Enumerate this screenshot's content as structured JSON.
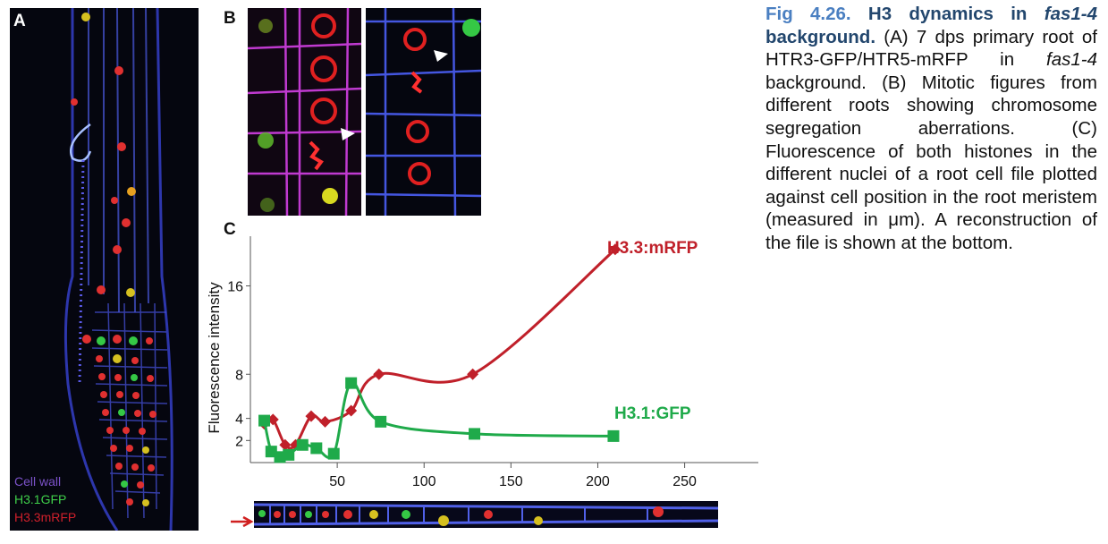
{
  "figure_number": "Fig 4.26.",
  "title_prefix": "H3 dynamics in",
  "title_italic": "fas1-4",
  "title_suffix": "background.",
  "caption_part1": "(A) 7 dps primary root of HTR3-GFP/HTR5-mRFP in",
  "caption_italic": "fas1-4",
  "caption_part2": "background. (B) Mitotic figures from different roots showing chromosome segregation aberrations. (C) Fluorescence of both histones in the different nuclei of a root cell file plotted against cell position in the root meristem (measured in μm). A reconstruction of the file is shown at the bottom.",
  "panels": {
    "a": "A",
    "b": "B",
    "c": "C"
  },
  "legend": {
    "cell_wall": "Cell wall",
    "h31": "H3.1GFP",
    "h33": "H3.3mRFP",
    "colors": {
      "cell_wall": "#7b52c8",
      "h31": "#3fcf4a",
      "h33": "#d0202b"
    }
  },
  "chart_data": {
    "type": "line",
    "x_unit": "μm",
    "ylabel": "Fluorescence intensity",
    "x_ticks": [
      50,
      100,
      150,
      200,
      250
    ],
    "y_ticks": [
      2,
      4,
      8,
      16
    ],
    "xlim": [
      0,
      295
    ],
    "ylim": [
      0,
      20.5
    ],
    "series": [
      {
        "name": "H3.3:mRFP",
        "color": "#c0202a",
        "marker": "diamond",
        "x": [
          8,
          13,
          20,
          26,
          35,
          43,
          58,
          74,
          128,
          210
        ],
        "y": [
          3.5,
          3.9,
          1.6,
          1.6,
          4.2,
          3.7,
          4.7,
          8.0,
          8.0,
          19.3
        ]
      },
      {
        "name": "H3.1:GFP",
        "color": "#1faa4a",
        "marker": "square",
        "x": [
          8,
          12,
          17,
          22,
          30,
          38,
          48,
          58,
          75,
          129,
          209
        ],
        "y": [
          3.8,
          1.0,
          0.5,
          0.7,
          1.6,
          1.3,
          0.8,
          7.2,
          3.7,
          2.6,
          2.4
        ]
      }
    ]
  }
}
